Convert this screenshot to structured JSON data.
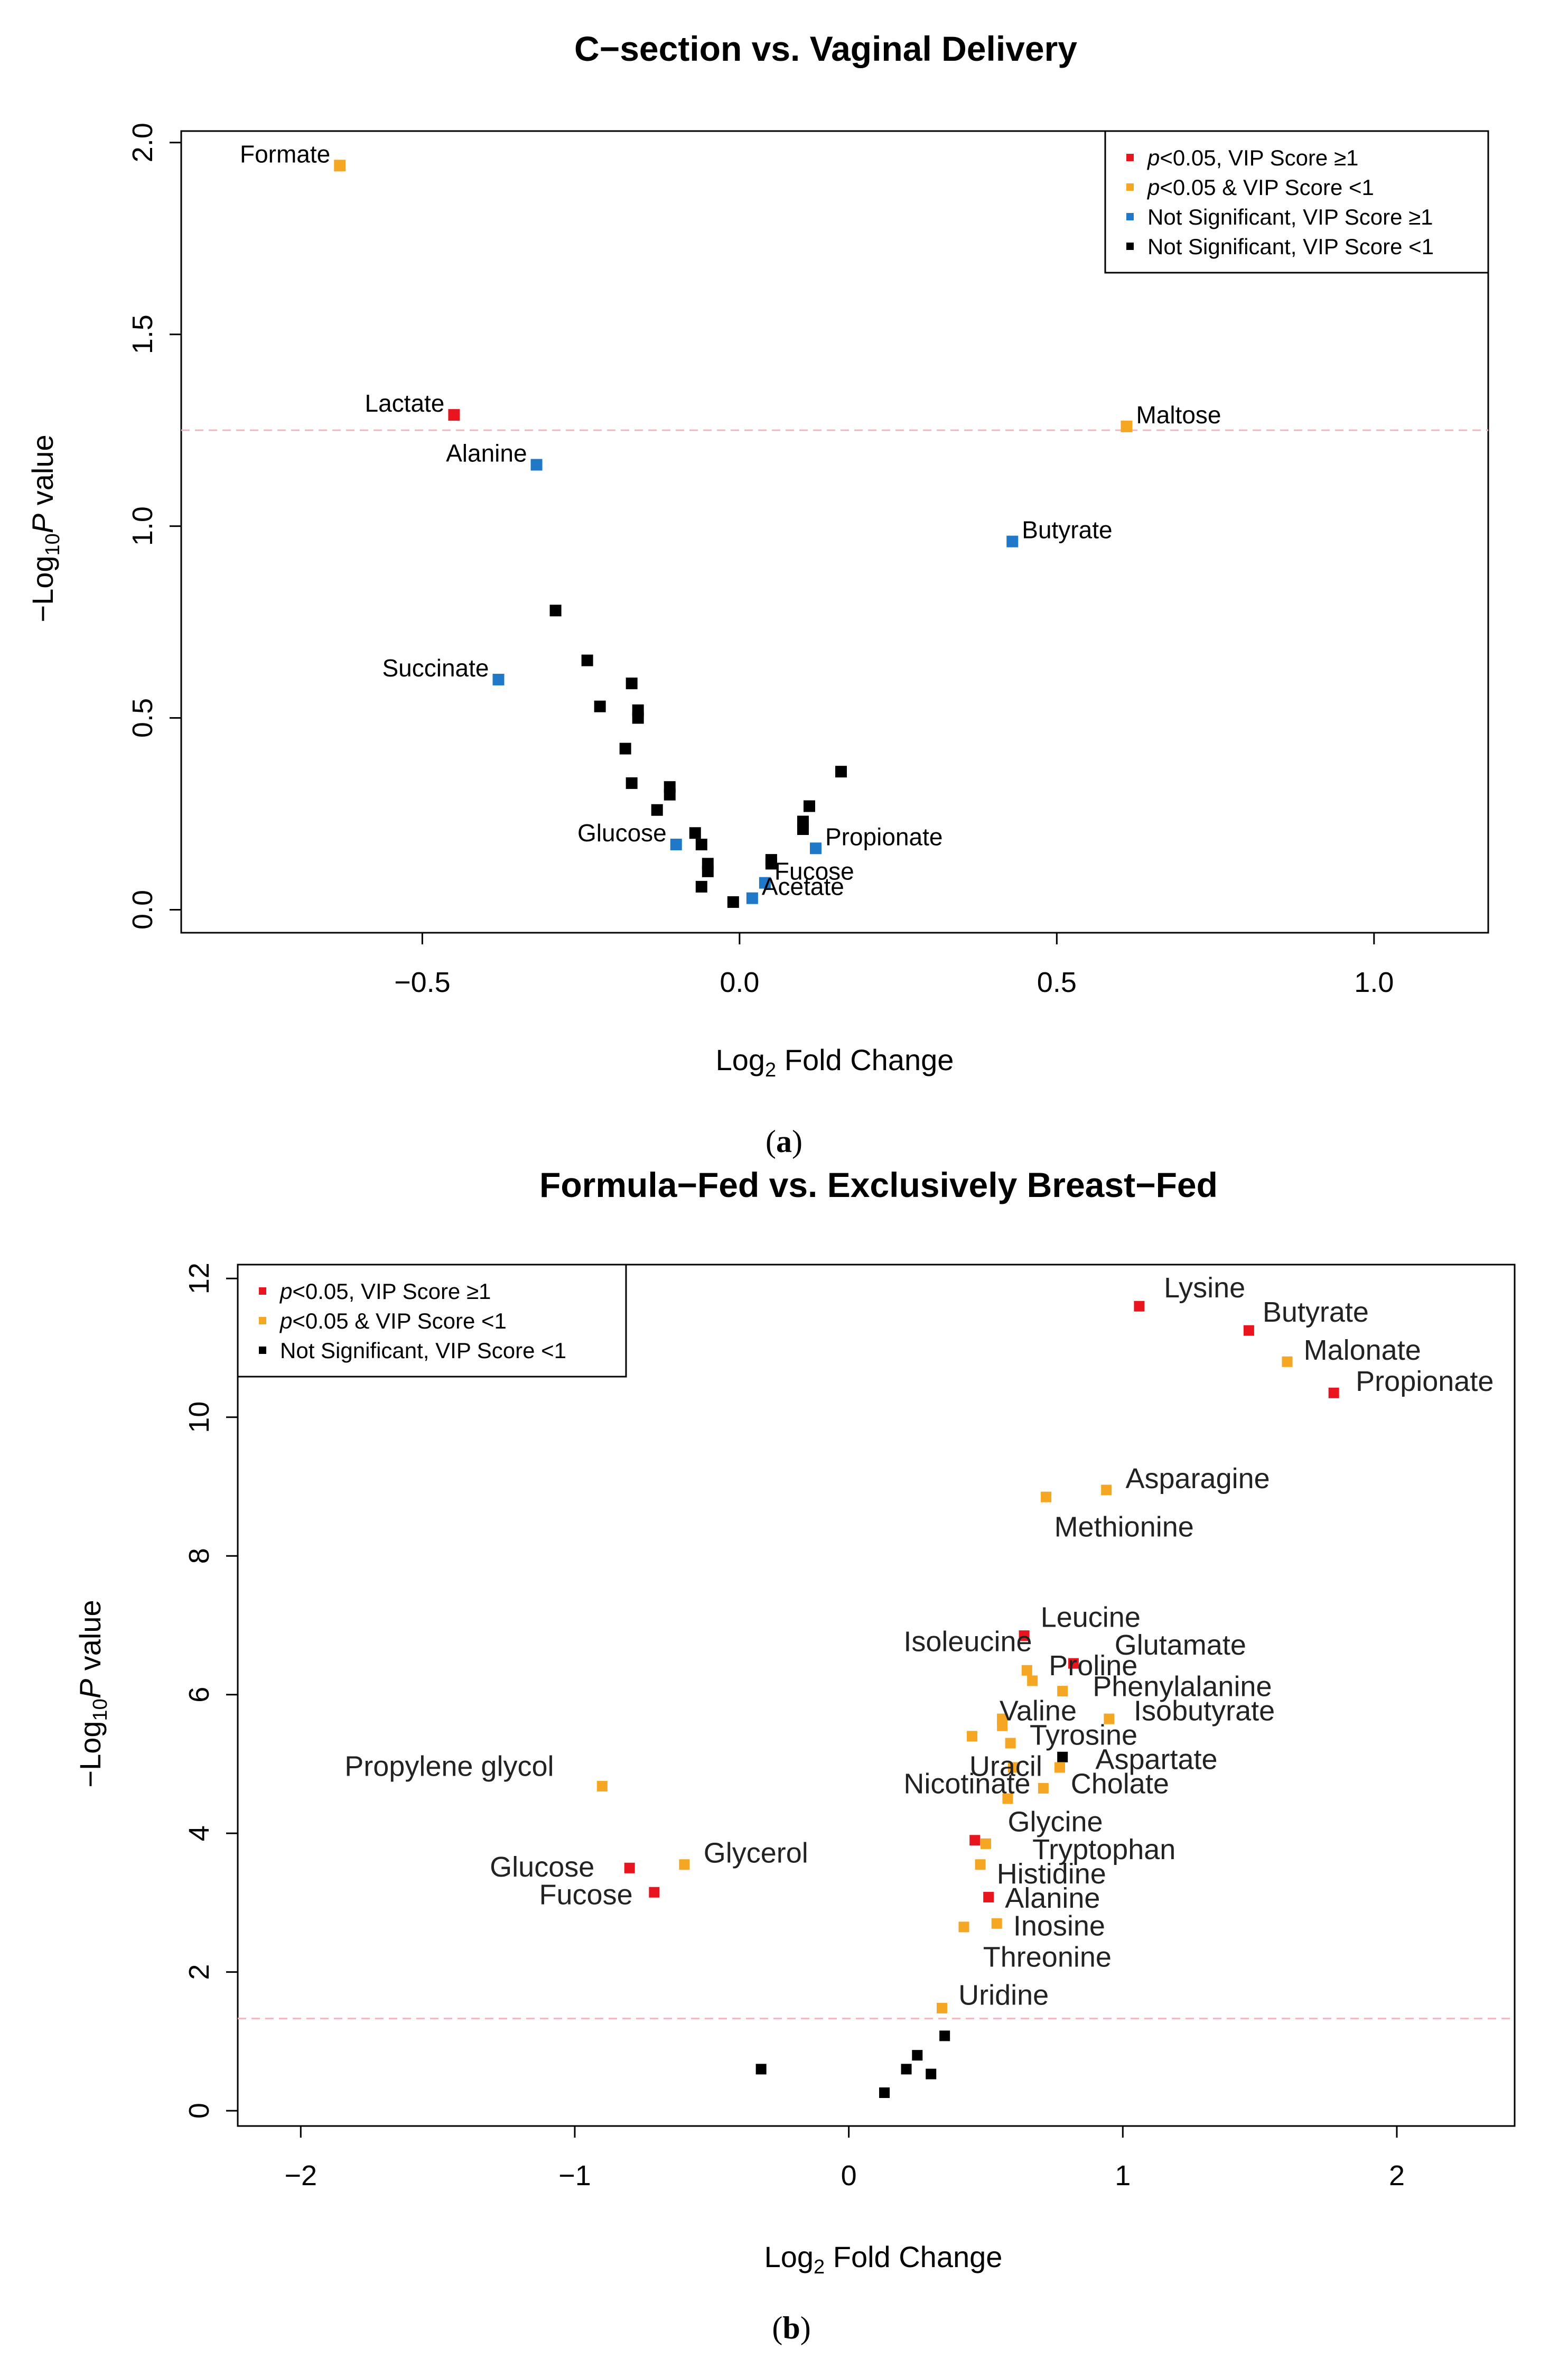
{
  "chart_data": [
    {
      "type": "scatter",
      "caption_letter": "a",
      "title": "C−section vs. Vaginal Delivery",
      "xlabel_main": "Log",
      "xlabel_sub": "2",
      "xlabel_rest": " Fold Change",
      "ylabel_pre": "−Log",
      "ylabel_sub": "10",
      "ylabel_p": "P",
      "ylabel_rest": " value",
      "xlim": [
        -0.88,
        1.18
      ],
      "ylim": [
        -0.06,
        2.03
      ],
      "xticks": [
        -0.5,
        0.0,
        0.5,
        1.0
      ],
      "xtick_labels": [
        "−0.5",
        "0.0",
        "0.5",
        "1.0"
      ],
      "yticks": [
        0.0,
        0.5,
        1.0,
        1.5,
        2.0
      ],
      "ytick_labels": [
        "0.0",
        "0.5",
        "1.0",
        "1.5",
        "2.0"
      ],
      "threshold_y": 1.25,
      "legend_position": "top-right",
      "legend": [
        {
          "label_p": "p",
          "label_rest": "<0.05, VIP Score ≥1",
          "color": "#e8141e"
        },
        {
          "label_p": "p",
          "label_rest": "<0.05 & VIP Score <1",
          "color": "#f5a623"
        },
        {
          "label_p": "",
          "label_rest": "Not Significant, VIP Score ≥1",
          "color": "#1f78c8"
        },
        {
          "label_p": "",
          "label_rest": "Not Significant, VIP Score <1",
          "color": "#000000"
        }
      ],
      "points": [
        {
          "x": -0.63,
          "y": 1.94,
          "color": "#f5a623",
          "label": "Formate",
          "lpos": "left"
        },
        {
          "x": -0.45,
          "y": 1.29,
          "color": "#e8141e",
          "label": "Lactate",
          "lpos": "left"
        },
        {
          "x": -0.32,
          "y": 1.16,
          "color": "#1f78c8",
          "label": "Alanine",
          "lpos": "left"
        },
        {
          "x": -0.38,
          "y": 0.6,
          "color": "#1f78c8",
          "label": "Succinate",
          "lpos": "left"
        },
        {
          "x": 0.61,
          "y": 1.26,
          "color": "#f5a623",
          "label": "Maltose",
          "lpos": "right"
        },
        {
          "x": 0.43,
          "y": 0.96,
          "color": "#1f78c8",
          "label": "Butyrate",
          "lpos": "right"
        },
        {
          "x": -0.1,
          "y": 0.17,
          "color": "#1f78c8",
          "label": "Glucose",
          "lpos": "left"
        },
        {
          "x": 0.12,
          "y": 0.16,
          "color": "#1f78c8",
          "label": "Propionate",
          "lpos": "right"
        },
        {
          "x": 0.04,
          "y": 0.07,
          "color": "#1f78c8",
          "label": "Fucose",
          "lpos": "right"
        },
        {
          "x": 0.02,
          "y": 0.03,
          "color": "#1f78c8",
          "label": "Acetate",
          "lpos": "right"
        },
        {
          "x": -0.29,
          "y": 0.78,
          "color": "#000000",
          "label": ""
        },
        {
          "x": -0.24,
          "y": 0.65,
          "color": "#000000",
          "label": ""
        },
        {
          "x": -0.17,
          "y": 0.59,
          "color": "#000000",
          "label": ""
        },
        {
          "x": -0.22,
          "y": 0.53,
          "color": "#000000",
          "label": ""
        },
        {
          "x": -0.16,
          "y": 0.52,
          "color": "#000000",
          "label": ""
        },
        {
          "x": -0.16,
          "y": 0.5,
          "color": "#000000",
          "label": ""
        },
        {
          "x": -0.18,
          "y": 0.42,
          "color": "#000000",
          "label": ""
        },
        {
          "x": -0.17,
          "y": 0.33,
          "color": "#000000",
          "label": ""
        },
        {
          "x": -0.11,
          "y": 0.32,
          "color": "#000000",
          "label": ""
        },
        {
          "x": -0.11,
          "y": 0.3,
          "color": "#000000",
          "label": ""
        },
        {
          "x": -0.13,
          "y": 0.26,
          "color": "#000000",
          "label": ""
        },
        {
          "x": -0.07,
          "y": 0.2,
          "color": "#000000",
          "label": ""
        },
        {
          "x": -0.06,
          "y": 0.17,
          "color": "#000000",
          "label": ""
        },
        {
          "x": -0.05,
          "y": 0.12,
          "color": "#000000",
          "label": ""
        },
        {
          "x": -0.05,
          "y": 0.1,
          "color": "#000000",
          "label": ""
        },
        {
          "x": -0.06,
          "y": 0.06,
          "color": "#000000",
          "label": ""
        },
        {
          "x": -0.01,
          "y": 0.02,
          "color": "#000000",
          "label": ""
        },
        {
          "x": 0.05,
          "y": 0.13,
          "color": "#000000",
          "label": ""
        },
        {
          "x": 0.05,
          "y": 0.12,
          "color": "#000000",
          "label": ""
        },
        {
          "x": 0.1,
          "y": 0.23,
          "color": "#000000",
          "label": ""
        },
        {
          "x": 0.1,
          "y": 0.21,
          "color": "#000000",
          "label": ""
        },
        {
          "x": 0.11,
          "y": 0.27,
          "color": "#000000",
          "label": ""
        },
        {
          "x": 0.16,
          "y": 0.36,
          "color": "#000000",
          "label": ""
        }
      ]
    },
    {
      "type": "scatter",
      "caption_letter": "b",
      "title": "Formula−Fed vs. Exclusively Breast−Fed",
      "xlabel_main": "Log",
      "xlabel_sub": "2",
      "xlabel_rest": " Fold Change",
      "ylabel_pre": "−Log",
      "ylabel_sub": "10",
      "ylabel_p": "P",
      "ylabel_rest": " value",
      "xlim": [
        -2.23,
        2.43
      ],
      "ylim": [
        -0.22,
        12.2
      ],
      "xticks": [
        -2,
        -1,
        0,
        1,
        2
      ],
      "xtick_labels": [
        "−2",
        "−1",
        "0",
        "1",
        "2"
      ],
      "yticks": [
        0,
        2,
        4,
        6,
        8,
        10,
        12
      ],
      "ytick_labels": [
        "0",
        "2",
        "4",
        "6",
        "8",
        "10",
        "12"
      ],
      "threshold_y": 1.33,
      "legend_position": "top-left",
      "legend": [
        {
          "label_p": "p",
          "label_rest": "<0.05, VIP Score ≥1",
          "color": "#e8141e"
        },
        {
          "label_p": "p",
          "label_rest": "<0.05 & VIP Score <1",
          "color": "#f5a623"
        },
        {
          "label_p": "",
          "label_rest": "Not Significant, VIP Score <1",
          "color": "#000000"
        }
      ],
      "points": [
        {
          "x": 1.06,
          "y": 11.6,
          "color": "#e8141e",
          "label": "Lysine",
          "lx": 1.15,
          "ly": 11.85
        },
        {
          "x": 1.46,
          "y": 11.25,
          "color": "#e8141e",
          "label": "Butyrate",
          "lx": 1.51,
          "ly": 11.5
        },
        {
          "x": 1.6,
          "y": 10.8,
          "color": "#f5a623",
          "label": "Malonate",
          "lx": 1.66,
          "ly": 10.95
        },
        {
          "x": 1.77,
          "y": 10.35,
          "color": "#e8141e",
          "label": "Propionate",
          "lx": 1.85,
          "ly": 10.5
        },
        {
          "x": 0.94,
          "y": 8.95,
          "color": "#f5a623",
          "label": "Asparagine",
          "lx": 1.01,
          "ly": 9.1
        },
        {
          "x": 0.72,
          "y": 8.85,
          "color": "#f5a623",
          "label": "Methionine",
          "lx": 0.75,
          "ly": 8.4
        },
        {
          "x": 0.64,
          "y": 6.85,
          "color": "#e8141e",
          "label": "Leucine",
          "lx": 0.7,
          "ly": 7.1
        },
        {
          "x": 0.82,
          "y": 6.45,
          "color": "#e8141e",
          "label": "Glutamate",
          "lx": 0.97,
          "ly": 6.7
        },
        {
          "x": 0.65,
          "y": 6.35,
          "color": "#f5a623",
          "label": "Isoleucine",
          "lx": 0.2,
          "ly": 6.75
        },
        {
          "x": 0.67,
          "y": 6.2,
          "color": "#f5a623",
          "label": "Proline",
          "lx": 0.73,
          "ly": 6.4
        },
        {
          "x": 0.78,
          "y": 6.05,
          "color": "#f5a623",
          "label": "Phenylalanine",
          "lx": 0.89,
          "ly": 6.1
        },
        {
          "x": 0.95,
          "y": 5.65,
          "color": "#f5a623",
          "label": "Isobutyrate",
          "lx": 1.04,
          "ly": 5.75
        },
        {
          "x": 0.56,
          "y": 5.65,
          "color": "#f5a623",
          "label": "Valine",
          "lx": 0.55,
          "ly": 5.75
        },
        {
          "x": 0.56,
          "y": 5.55,
          "color": "#f5a623",
          "label": "",
          "lx": 0,
          "ly": 0
        },
        {
          "x": 0.45,
          "y": 5.4,
          "color": "#f5a623",
          "label": "",
          "lx": 0,
          "ly": 0
        },
        {
          "x": 0.59,
          "y": 5.3,
          "color": "#f5a623",
          "label": "Tyrosine",
          "lx": 0.66,
          "ly": 5.4
        },
        {
          "x": 0.78,
          "y": 5.1,
          "color": "#000000",
          "label": "Aspartate",
          "lx": 0.9,
          "ly": 5.05
        },
        {
          "x": 0.77,
          "y": 4.95,
          "color": "#f5a623",
          "label": "",
          "lx": 0,
          "ly": 0
        },
        {
          "x": 0.6,
          "y": 4.95,
          "color": "#f5a623",
          "label": "Uracil",
          "lx": 0.44,
          "ly": 4.95
        },
        {
          "x": 0.71,
          "y": 4.65,
          "color": "#f5a623",
          "label": "Cholate",
          "lx": 0.81,
          "ly": 4.7
        },
        {
          "x": 0.58,
          "y": 4.5,
          "color": "#f5a623",
          "label": "Nicotinate",
          "lx": 0.2,
          "ly": 4.7
        },
        {
          "x": -0.9,
          "y": 4.68,
          "color": "#f5a623",
          "label": "Propylene glycol",
          "lx": -1.84,
          "ly": 4.95
        },
        {
          "x": 0.46,
          "y": 3.9,
          "color": "#e8141e",
          "label": "Glycine",
          "lx": 0.58,
          "ly": 4.15
        },
        {
          "x": 0.5,
          "y": 3.85,
          "color": "#f5a623",
          "label": "Tryptophan",
          "lx": 0.67,
          "ly": 3.75
        },
        {
          "x": 0.48,
          "y": 3.55,
          "color": "#f5a623",
          "label": "Histidine",
          "lx": 0.54,
          "ly": 3.4
        },
        {
          "x": 0.51,
          "y": 3.08,
          "color": "#e8141e",
          "label": "Alanine",
          "lx": 0.57,
          "ly": 3.05
        },
        {
          "x": 0.54,
          "y": 2.7,
          "color": "#f5a623",
          "label": "Inosine",
          "lx": 0.6,
          "ly": 2.65
        },
        {
          "x": 0.42,
          "y": 2.65,
          "color": "#f5a623",
          "label": "Threonine",
          "lx": 0.49,
          "ly": 2.2
        },
        {
          "x": -0.6,
          "y": 3.55,
          "color": "#f5a623",
          "label": "Glycerol",
          "lx": -0.53,
          "ly": 3.7
        },
        {
          "x": -0.8,
          "y": 3.5,
          "color": "#e8141e",
          "label": "Glucose",
          "lx": -1.31,
          "ly": 3.5
        },
        {
          "x": -0.71,
          "y": 3.15,
          "color": "#e8141e",
          "label": "Fucose",
          "lx": -1.13,
          "ly": 3.1
        },
        {
          "x": 0.34,
          "y": 1.48,
          "color": "#f5a623",
          "label": "Uridine",
          "lx": 0.4,
          "ly": 1.65
        },
        {
          "x": 0.35,
          "y": 1.08,
          "color": "#000000",
          "label": "",
          "lx": 0,
          "ly": 0
        },
        {
          "x": 0.25,
          "y": 0.8,
          "color": "#000000",
          "label": "",
          "lx": 0,
          "ly": 0
        },
        {
          "x": 0.21,
          "y": 0.6,
          "color": "#000000",
          "label": "",
          "lx": 0,
          "ly": 0
        },
        {
          "x": 0.3,
          "y": 0.53,
          "color": "#000000",
          "label": "",
          "lx": 0,
          "ly": 0
        },
        {
          "x": -0.32,
          "y": 0.6,
          "color": "#000000",
          "label": "",
          "lx": 0,
          "ly": 0
        },
        {
          "x": 0.13,
          "y": 0.26,
          "color": "#000000",
          "label": "",
          "lx": 0,
          "ly": 0
        }
      ]
    }
  ]
}
